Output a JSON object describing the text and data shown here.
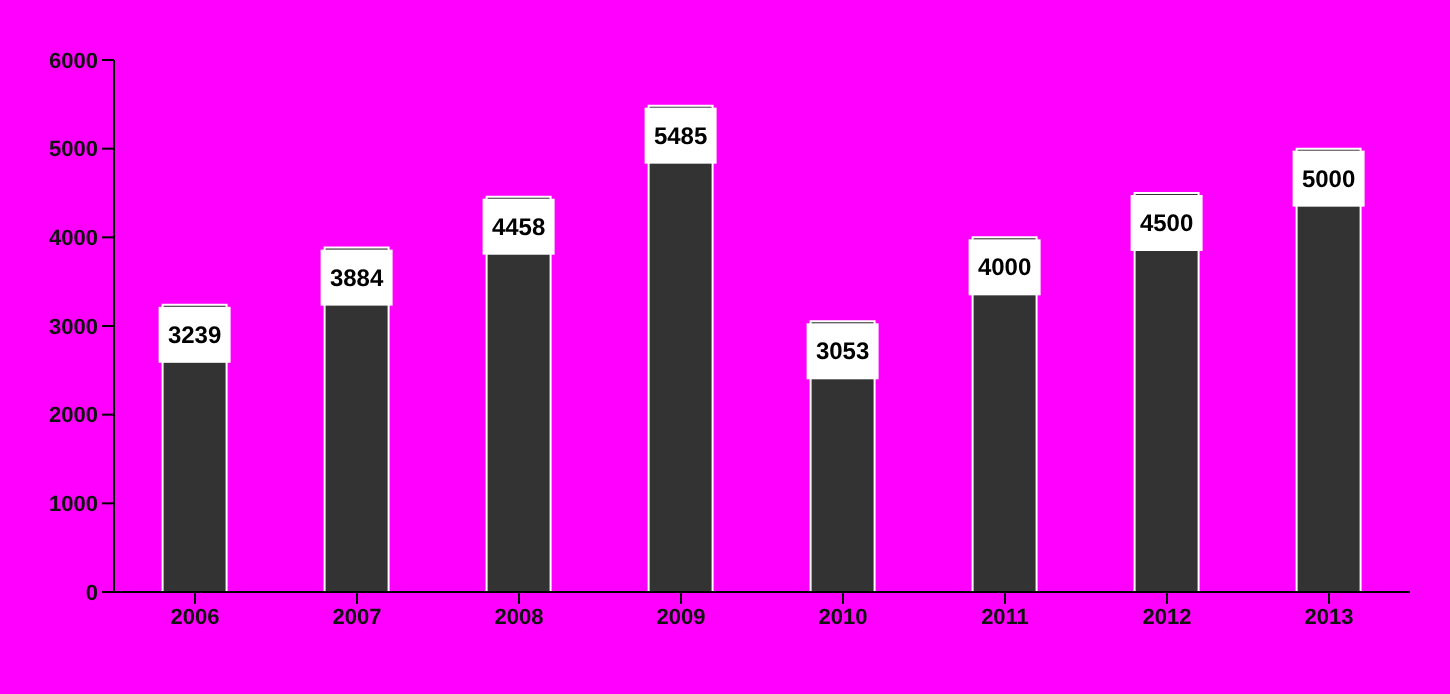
{
  "chart_data": {
    "type": "bar",
    "categories": [
      "2006",
      "2007",
      "2008",
      "2009",
      "2010",
      "2011",
      "2012",
      "2013"
    ],
    "values": [
      3239,
      3884,
      4458,
      5485,
      3053,
      4000,
      4500,
      5000
    ],
    "color": "#333333",
    "ylim": [
      0,
      6000
    ],
    "yticks": [
      0,
      1000,
      2000,
      3000,
      4000,
      5000,
      6000
    ],
    "grid": false,
    "data_labels": true
  }
}
